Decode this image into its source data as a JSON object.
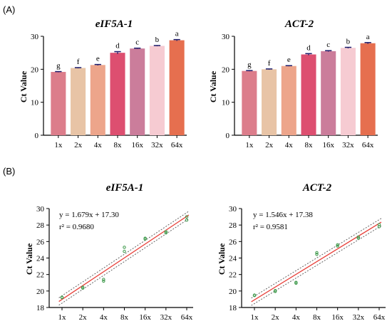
{
  "panels": {
    "a": "(A)",
    "b": "(B)"
  },
  "chart_data": [
    {
      "type": "bar",
      "title": "eIF5A-1",
      "ylabel": "Ct Value",
      "xlabel": "",
      "ylim": [
        0,
        30
      ],
      "yticks": [
        0,
        10,
        20,
        30
      ],
      "categories": [
        "1x",
        "2x",
        "4x",
        "8x",
        "16x",
        "32x",
        "64x"
      ],
      "values": [
        19.2,
        20.4,
        21.3,
        25.0,
        26.3,
        27.1,
        28.8
      ],
      "errors": [
        0.1,
        0.1,
        0.15,
        0.35,
        0.1,
        0.1,
        0.2
      ],
      "letters": [
        "g",
        "f",
        "e",
        "d",
        "c",
        "b",
        "a"
      ],
      "colors": [
        "#dc7d8b",
        "#e8c4a6",
        "#eda58b",
        "#dd4f70",
        "#cb7d9b",
        "#f6cbd2",
        "#e66f4f"
      ],
      "grid": false
    },
    {
      "type": "bar",
      "title": "ACT-2",
      "ylabel": "Ct Value",
      "xlabel": "",
      "ylim": [
        0,
        30
      ],
      "yticks": [
        0,
        10,
        20,
        30
      ],
      "categories": [
        "1x",
        "2x",
        "4x",
        "8x",
        "16x",
        "32x",
        "64x"
      ],
      "values": [
        19.5,
        20.0,
        21.0,
        24.5,
        25.5,
        26.5,
        27.9
      ],
      "errors": [
        0.1,
        0.1,
        0.1,
        0.25,
        0.15,
        0.15,
        0.2
      ],
      "letters": [
        "g",
        "f",
        "e",
        "d",
        "c",
        "b",
        "a"
      ],
      "colors": [
        "#dc7d8b",
        "#e8c4a6",
        "#eda58b",
        "#dd4f70",
        "#cb7d9b",
        "#f6cbd2",
        "#e66f4f"
      ],
      "grid": false
    },
    {
      "type": "scatter",
      "title": "eIF5A-1",
      "ylabel": "Ct Value",
      "xlabel": "",
      "ylim": [
        18,
        30
      ],
      "yticks": [
        18,
        20,
        22,
        24,
        26,
        28,
        30
      ],
      "categories": [
        "1x",
        "2x",
        "4x",
        "8x",
        "16x",
        "32x",
        "64x"
      ],
      "points": [
        [
          1,
          19.2
        ],
        [
          1,
          19.25
        ],
        [
          2,
          20.35
        ],
        [
          2,
          20.45
        ],
        [
          3,
          21.2
        ],
        [
          3,
          21.4
        ],
        [
          4,
          24.8
        ],
        [
          4,
          25.3
        ],
        [
          5,
          26.3
        ],
        [
          5,
          26.4
        ],
        [
          6,
          27.05
        ],
        [
          6,
          27.2
        ],
        [
          7,
          28.6
        ],
        [
          7,
          29.0
        ]
      ],
      "fit": {
        "slope": 1.679,
        "intercept": 17.3
      },
      "ci_halfwidth": 0.45,
      "equation": "y = 1.679x + 17.30",
      "r2": "r² = 0.9680",
      "grid": false
    },
    {
      "type": "scatter",
      "title": "ACT-2",
      "ylabel": "Ct Value",
      "xlabel": "",
      "ylim": [
        18,
        30
      ],
      "yticks": [
        18,
        20,
        22,
        24,
        26,
        28,
        30
      ],
      "categories": [
        "1x",
        "2x",
        "4x",
        "8x",
        "16x",
        "32x",
        "64x"
      ],
      "points": [
        [
          1,
          19.45
        ],
        [
          1,
          19.5
        ],
        [
          2,
          19.95
        ],
        [
          2,
          20.05
        ],
        [
          3,
          20.95
        ],
        [
          3,
          21.05
        ],
        [
          4,
          24.45
        ],
        [
          4,
          24.65
        ],
        [
          5,
          25.45
        ],
        [
          5,
          25.6
        ],
        [
          6,
          26.4
        ],
        [
          6,
          26.55
        ],
        [
          7,
          27.8
        ],
        [
          7,
          28.05
        ]
      ],
      "fit": {
        "slope": 1.546,
        "intercept": 17.38
      },
      "ci_halfwidth": 0.45,
      "equation": "y = 1.546x + 17.38",
      "r2": "r² = 0.9581",
      "grid": false
    }
  ]
}
